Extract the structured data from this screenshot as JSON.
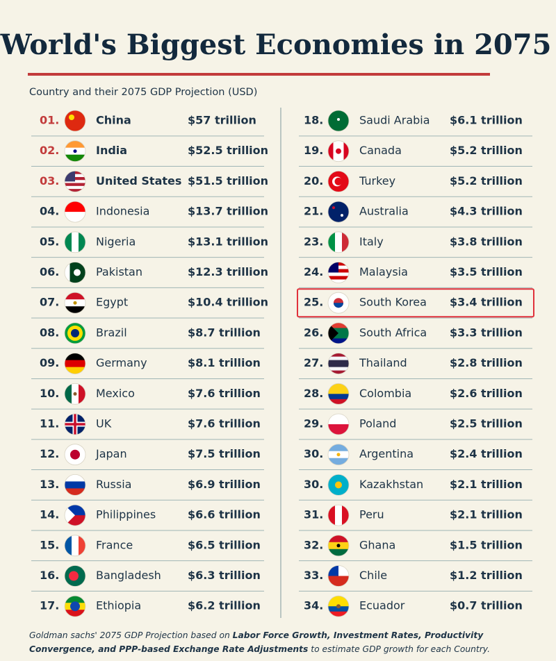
{
  "header": {
    "title": "World's Biggest Economies in 2075",
    "subtitle": "Country and their 2075 GDP Projection (USD)"
  },
  "columns": [
    {
      "rows": [
        {
          "rank": "01.",
          "country": "China",
          "gdp": "$57 trillion"
        },
        {
          "rank": "02.",
          "country": "India",
          "gdp": "$52.5 trillion"
        },
        {
          "rank": "03.",
          "country": "United States",
          "gdp": "$51.5 trillion"
        },
        {
          "rank": "04.",
          "country": "Indonesia",
          "gdp": "$13.7 trillion"
        },
        {
          "rank": "05.",
          "country": "Nigeria",
          "gdp": "$13.1 trillion"
        },
        {
          "rank": "06.",
          "country": "Pakistan",
          "gdp": "$12.3 trillion"
        },
        {
          "rank": "07.",
          "country": "Egypt",
          "gdp": "$10.4 trillion"
        },
        {
          "rank": "08.",
          "country": "Brazil",
          "gdp": "$8.7 trillion"
        },
        {
          "rank": "09.",
          "country": "Germany",
          "gdp": "$8.1 trillion"
        },
        {
          "rank": "10.",
          "country": "Mexico",
          "gdp": "$7.6 trillion"
        },
        {
          "rank": "11.",
          "country": "UK",
          "gdp": "$7.6 trillion"
        },
        {
          "rank": "12.",
          "country": "Japan",
          "gdp": "$7.5 trillion"
        },
        {
          "rank": "13.",
          "country": "Russia",
          "gdp": "$6.9 trillion"
        },
        {
          "rank": "14.",
          "country": "Philippines",
          "gdp": "$6.6 trillion"
        },
        {
          "rank": "15.",
          "country": "France",
          "gdp": "$6.5 trillion"
        },
        {
          "rank": "16.",
          "country": "Bangladesh",
          "gdp": "$6.3 trillion"
        },
        {
          "rank": "17.",
          "country": "Ethiopia",
          "gdp": "$6.2 trillion"
        }
      ]
    },
    {
      "rows": [
        {
          "rank": "18.",
          "country": "Saudi Arabia",
          "gdp": "$6.1 trillion"
        },
        {
          "rank": "19.",
          "country": "Canada",
          "gdp": "$5.2 trillion"
        },
        {
          "rank": "20.",
          "country": "Turkey",
          "gdp": "$5.2 trillion"
        },
        {
          "rank": "21.",
          "country": "Australia",
          "gdp": "$4.3 trillion"
        },
        {
          "rank": "23.",
          "country": "Italy",
          "gdp": "$3.8 trillion"
        },
        {
          "rank": "24.",
          "country": "Malaysia",
          "gdp": "$3.5 trillion"
        },
        {
          "rank": "25.",
          "country": "South Korea",
          "gdp": "$3.4 trillion",
          "highlight": true
        },
        {
          "rank": "26.",
          "country": "South Africa",
          "gdp": "$3.3 trillion"
        },
        {
          "rank": "27.",
          "country": "Thailand",
          "gdp": "$2.8 trillion"
        },
        {
          "rank": "28.",
          "country": "Colombia",
          "gdp": "$2.6 trillion"
        },
        {
          "rank": "29.",
          "country": "Poland",
          "gdp": "$2.5 trillion"
        },
        {
          "rank": "30.",
          "country": "Argentina",
          "gdp": "$2.4 trillion"
        },
        {
          "rank": "30.",
          "country": "Kazakhstan",
          "gdp": "$2.1 trillion"
        },
        {
          "rank": "31.",
          "country": "Peru",
          "gdp": "$2.1 trillion"
        },
        {
          "rank": "32.",
          "country": "Ghana",
          "gdp": "$1.5 trillion"
        },
        {
          "rank": "33.",
          "country": "Chile",
          "gdp": "$1.2 trillion"
        },
        {
          "rank": "34.",
          "country": "Ecuador",
          "gdp": "$0.7 trillion"
        }
      ]
    }
  ],
  "footnote": [
    {
      "text": "Goldman sachs' 2075 GDP Projection based on ",
      "bold": false
    },
    {
      "text": "Labor Force Growth, Investment Rates, Productivity",
      "bold": true
    },
    {
      "text": "Convergence, and PPP-based Exchange Rate Adjustments",
      "bold": true,
      "newline": true
    },
    {
      "text": " to estimate GDP growth for each Country.",
      "bold": false
    }
  ]
}
